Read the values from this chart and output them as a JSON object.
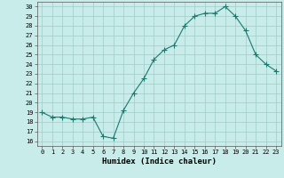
{
  "x": [
    0,
    1,
    2,
    3,
    4,
    5,
    6,
    7,
    8,
    9,
    10,
    11,
    12,
    13,
    14,
    15,
    16,
    17,
    18,
    19,
    20,
    21,
    22,
    23
  ],
  "y": [
    19,
    18.5,
    18.5,
    18.3,
    18.3,
    18.5,
    16.5,
    16.3,
    19.2,
    21.0,
    22.5,
    24.5,
    25.5,
    26.0,
    28.0,
    29.0,
    29.3,
    29.3,
    30.0,
    29.0,
    27.5,
    25.0,
    24.0,
    23.3
  ],
  "line_color": "#1a7a6e",
  "marker": "+",
  "marker_size": 4,
  "bg_color": "#c8ece9",
  "grid_color": "#a0ccc8",
  "xlabel": "Humidex (Indice chaleur)",
  "ylabel_ticks": [
    16,
    17,
    18,
    19,
    20,
    21,
    22,
    23,
    24,
    25,
    26,
    27,
    28,
    29,
    30
  ],
  "xlim": [
    -0.5,
    23.5
  ],
  "ylim": [
    15.5,
    30.5
  ]
}
